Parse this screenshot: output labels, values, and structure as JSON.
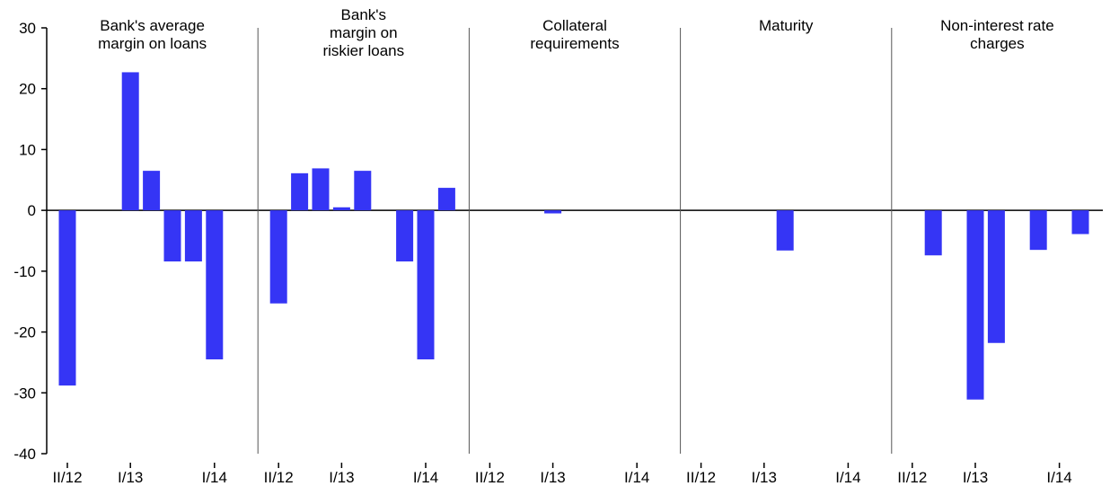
{
  "chart_data": {
    "type": "bar",
    "y_axis": {
      "ylim": [
        -40,
        30
      ],
      "ticks": [
        30,
        20,
        10,
        0,
        -10,
        -20,
        -30,
        -40
      ],
      "tick_labels": [
        "30",
        "20",
        "10",
        "0",
        "-10",
        "-20",
        "-30",
        "-40"
      ]
    },
    "x_tick_labels_shown": [
      "II/12",
      "I/13",
      "I/14"
    ],
    "categories": [
      "II/12",
      "III/12",
      "IV/12",
      "I/13",
      "II/13",
      "III/13",
      "IV/13",
      "I/14",
      "II/14"
    ],
    "bar_color": "#3535f5",
    "panels": [
      {
        "title": [
          "Bank's average",
          "margin on loans"
        ],
        "values": [
          -28.8,
          0,
          0,
          22.7,
          6.5,
          -8.4,
          -8.4,
          -24.5,
          0
        ]
      },
      {
        "title": [
          "Bank's",
          "margin on",
          "riskier loans"
        ],
        "values": [
          -15.3,
          6.1,
          6.9,
          0.5,
          6.5,
          0,
          -8.4,
          -24.5,
          3.7
        ]
      },
      {
        "title": [
          "Collateral",
          "requirements"
        ],
        "values": [
          0,
          0,
          0,
          -0.5,
          0,
          0,
          0,
          0,
          0
        ]
      },
      {
        "title": [
          "Maturity"
        ],
        "values": [
          0,
          0,
          0,
          0,
          -6.6,
          0,
          0,
          0,
          0
        ]
      },
      {
        "title": [
          "Non-interest rate",
          "charges"
        ],
        "values": [
          0,
          -7.4,
          0,
          -31.1,
          -21.8,
          0,
          -6.5,
          0,
          -3.9
        ]
      }
    ]
  }
}
